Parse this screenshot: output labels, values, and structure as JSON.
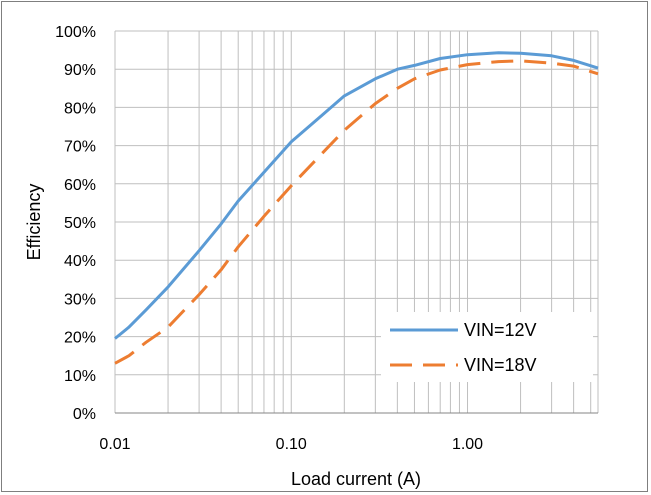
{
  "chart_data": {
    "type": "line",
    "xlabel": "Load current (A)",
    "ylabel": "Efficiency",
    "x_scale": "log",
    "xlim": [
      0.01,
      5.5
    ],
    "ylim": [
      0,
      100
    ],
    "x_ticks": [
      "0.01",
      "0.10",
      "1.00"
    ],
    "y_ticks": [
      "0%",
      "10%",
      "20%",
      "30%",
      "40%",
      "50%",
      "60%",
      "70%",
      "80%",
      "90%",
      "100%"
    ],
    "grid": true,
    "legend_position": "bottom-right",
    "series": [
      {
        "name": "VIN=12V",
        "color": "#5b9bd5",
        "dash": "solid",
        "x": [
          0.01,
          0.012,
          0.015,
          0.02,
          0.03,
          0.04,
          0.05,
          0.07,
          0.1,
          0.15,
          0.2,
          0.3,
          0.4,
          0.5,
          0.7,
          1.0,
          1.5,
          2.0,
          3.0,
          4.0,
          5.5
        ],
        "y": [
          19.5,
          22.5,
          27,
          33,
          42.5,
          49.5,
          55.5,
          63,
          71,
          78,
          83,
          87.5,
          90,
          91,
          92.8,
          93.8,
          94.3,
          94.2,
          93.5,
          92.3,
          90.3
        ]
      },
      {
        "name": "VIN=18V",
        "color": "#ed7d31",
        "dash": "dashed",
        "x": [
          0.01,
          0.012,
          0.015,
          0.02,
          0.03,
          0.04,
          0.05,
          0.07,
          0.1,
          0.15,
          0.2,
          0.3,
          0.4,
          0.5,
          0.7,
          1.0,
          1.5,
          2.0,
          3.0,
          4.0,
          5.5
        ],
        "y": [
          13,
          15,
          18.5,
          22.5,
          31,
          37.5,
          43.5,
          51.5,
          59.5,
          68,
          74,
          81,
          85,
          87.5,
          89.8,
          91.2,
          92,
          92.2,
          91.6,
          90.8,
          88.8
        ]
      }
    ]
  }
}
